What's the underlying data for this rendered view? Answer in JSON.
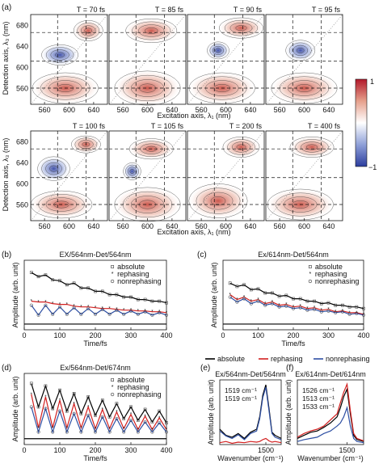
{
  "figure": {
    "panel_letters": [
      "(a)",
      "(b)",
      "(c)",
      "(d)",
      "(e)",
      "(f)"
    ]
  },
  "colorbar": {
    "max_label": "1",
    "min_label": "−1",
    "colors": [
      "#2b3d9e",
      "#8fa0d8",
      "#ffffff",
      "#e6a08c",
      "#b2182b"
    ]
  },
  "twod_maps": {
    "x_ticks": [
      "560",
      "600",
      "640"
    ],
    "y_ticks": [
      "680",
      "640",
      "600",
      "560"
    ],
    "xlabel": "Excitation axis, λ₁ (nm)",
    "ylabel": "Detection axis, λ₃ (nm)",
    "row1_titles": [
      "T = 70 fs",
      "T = 85 fs",
      "T = 90 fs",
      "T = 95 fs"
    ],
    "row2_titles": [
      "T = 100 fs",
      "T = 105 fs",
      "T = 200 fs",
      "T = 400 fs"
    ]
  },
  "legend_efg": {
    "absolute": "absolute",
    "rephasing": "rephasing",
    "nonrephasing": "nonrephasing",
    "colors": {
      "absolute": "#000000",
      "rephasing": "#d21f1f",
      "nonrephasing": "#2e4fa3"
    }
  },
  "chart_data": [
    {
      "id": "b",
      "type": "line",
      "title": "EX/564nm-Det/564nm",
      "xlabel": "Time/fs",
      "ylabel": "Amplitude (arb. unit)",
      "xlim": [
        0,
        400
      ],
      "x_ticks": [
        "0",
        "100",
        "200",
        "300",
        "400"
      ],
      "legend": [
        "absolute",
        "rephasing",
        "nonrephasing"
      ],
      "series": [
        {
          "name": "absolute",
          "x": [
            20,
            40,
            60,
            80,
            100,
            120,
            140,
            160,
            180,
            200,
            220,
            240,
            260,
            280,
            300,
            320,
            340,
            360,
            380,
            400
          ],
          "values": [
            0.85,
            0.8,
            0.82,
            0.76,
            0.75,
            0.7,
            0.72,
            0.66,
            0.66,
            0.62,
            0.62,
            0.58,
            0.58,
            0.55,
            0.55,
            0.52,
            0.52,
            0.5,
            0.5,
            0.48
          ]
        },
        {
          "name": "rephasing",
          "x": [
            20,
            40,
            60,
            80,
            100,
            120,
            140,
            160,
            180,
            200,
            220,
            240,
            260,
            280,
            300,
            320,
            340,
            360,
            380,
            400
          ],
          "values": [
            0.5,
            0.49,
            0.49,
            0.47,
            0.46,
            0.46,
            0.44,
            0.43,
            0.43,
            0.42,
            0.41,
            0.41,
            0.4,
            0.39,
            0.39,
            0.38,
            0.38,
            0.37,
            0.37,
            0.36
          ]
        },
        {
          "name": "nonrephasing",
          "x": [
            20,
            40,
            60,
            80,
            100,
            120,
            140,
            160,
            180,
            200,
            220,
            240,
            260,
            280,
            300,
            320,
            340,
            360,
            380,
            400
          ],
          "values": [
            0.45,
            0.33,
            0.45,
            0.34,
            0.43,
            0.34,
            0.42,
            0.34,
            0.41,
            0.34,
            0.4,
            0.34,
            0.39,
            0.34,
            0.38,
            0.34,
            0.37,
            0.33,
            0.36,
            0.33
          ]
        }
      ]
    },
    {
      "id": "c",
      "type": "line",
      "title": "Ex/614nm-Det/564nm",
      "xlabel": "Time/fs",
      "ylabel": "Amplitude (arb. unit)",
      "xlim": [
        0,
        400
      ],
      "x_ticks": [
        "0",
        "100",
        "200",
        "300",
        "400"
      ],
      "legend": [
        "absolute",
        "rephasing",
        "nonrephasing"
      ],
      "series": [
        {
          "name": "absolute",
          "x": [
            20,
            40,
            60,
            80,
            100,
            120,
            140,
            160,
            180,
            200,
            220,
            240,
            260,
            280,
            300,
            320,
            340,
            360,
            380,
            400
          ],
          "values": [
            0.72,
            0.68,
            0.7,
            0.64,
            0.65,
            0.6,
            0.6,
            0.56,
            0.57,
            0.53,
            0.53,
            0.5,
            0.5,
            0.47,
            0.48,
            0.45,
            0.45,
            0.43,
            0.43,
            0.41
          ]
        },
        {
          "name": "rephasing",
          "x": [
            20,
            40,
            60,
            80,
            100,
            120,
            140,
            160,
            180,
            200,
            220,
            240,
            260,
            280,
            300,
            320,
            340,
            360,
            380,
            400
          ],
          "values": [
            0.58,
            0.52,
            0.55,
            0.5,
            0.52,
            0.47,
            0.49,
            0.45,
            0.46,
            0.43,
            0.44,
            0.41,
            0.42,
            0.39,
            0.4,
            0.37,
            0.38,
            0.36,
            0.36,
            0.34
          ]
        },
        {
          "name": "nonrephasing",
          "x": [
            20,
            40,
            60,
            80,
            100,
            120,
            140,
            160,
            180,
            200,
            220,
            240,
            260,
            280,
            300,
            320,
            340,
            360,
            380,
            400
          ],
          "values": [
            0.55,
            0.49,
            0.53,
            0.47,
            0.5,
            0.45,
            0.47,
            0.43,
            0.44,
            0.41,
            0.42,
            0.39,
            0.4,
            0.37,
            0.38,
            0.36,
            0.37,
            0.34,
            0.35,
            0.33
          ]
        }
      ]
    },
    {
      "id": "d",
      "type": "line",
      "title": "Ex/564nm-Det/674nm",
      "xlabel": "Time/fs",
      "ylabel": "Amplitude (arb. unit)",
      "xlim": [
        0,
        400
      ],
      "x_ticks": [
        "0",
        "100",
        "200",
        "300",
        "400"
      ],
      "legend": [
        "absolute",
        "rephasing",
        "nonrephasing"
      ],
      "series": [
        {
          "name": "absolute",
          "x": [
            20,
            40,
            60,
            80,
            100,
            120,
            140,
            160,
            180,
            200,
            220,
            240,
            260,
            280,
            300,
            320,
            340,
            360,
            380,
            400
          ],
          "values": [
            0.88,
            0.6,
            0.85,
            0.58,
            0.8,
            0.55,
            0.76,
            0.52,
            0.72,
            0.5,
            0.68,
            0.48,
            0.64,
            0.46,
            0.6,
            0.44,
            0.57,
            0.42,
            0.55,
            0.41
          ]
        },
        {
          "name": "rephasing",
          "x": [
            20,
            40,
            60,
            80,
            100,
            120,
            140,
            160,
            180,
            200,
            220,
            240,
            260,
            280,
            300,
            320,
            340,
            360,
            380,
            400
          ],
          "values": [
            0.75,
            0.35,
            0.72,
            0.35,
            0.68,
            0.35,
            0.64,
            0.35,
            0.6,
            0.34,
            0.57,
            0.34,
            0.54,
            0.34,
            0.51,
            0.33,
            0.49,
            0.33,
            0.47,
            0.33
          ]
        },
        {
          "name": "nonrephasing",
          "x": [
            20,
            40,
            60,
            80,
            100,
            120,
            140,
            160,
            180,
            200,
            220,
            240,
            260,
            280,
            300,
            320,
            340,
            360,
            380,
            400
          ],
          "values": [
            0.6,
            0.3,
            0.58,
            0.3,
            0.55,
            0.3,
            0.52,
            0.3,
            0.5,
            0.3,
            0.48,
            0.3,
            0.46,
            0.3,
            0.44,
            0.3,
            0.42,
            0.3,
            0.41,
            0.3
          ]
        }
      ]
    },
    {
      "id": "e",
      "type": "line",
      "title": "Ex/564nm-Det/564nm",
      "xlabel": "Wavenumber (cm⁻¹)",
      "ylabel": "Amplitude (arb. unit)",
      "xlim": [
        0,
        2000
      ],
      "x_ticks": [
        "1500"
      ],
      "annotations": [
        {
          "text": "1519 cm⁻¹",
          "color": "#2e4fa3"
        },
        {
          "text": "1519 cm⁻¹",
          "color": "#000000"
        }
      ],
      "series": [
        {
          "name": "absolute",
          "x": [
            0,
            200,
            400,
            600,
            800,
            1000,
            1200,
            1300,
            1400,
            1500,
            1600,
            1700,
            1800,
            2000
          ],
          "values": [
            0.25,
            0.15,
            0.12,
            0.18,
            0.1,
            0.2,
            0.25,
            0.45,
            0.8,
            0.97,
            0.6,
            0.2,
            0.15,
            0.1
          ]
        },
        {
          "name": "rephasing",
          "x": [
            0,
            200,
            400,
            600,
            800,
            1000,
            1200,
            1300,
            1400,
            1500,
            1600,
            1700,
            1800,
            2000
          ],
          "values": [
            0.03,
            0.05,
            0.02,
            0.04,
            0.03,
            0.05,
            0.04,
            0.05,
            0.08,
            0.1,
            0.06,
            0.04,
            0.05,
            0.03
          ]
        },
        {
          "name": "nonrephasing",
          "x": [
            0,
            200,
            400,
            600,
            800,
            1000,
            1200,
            1300,
            1400,
            1500,
            1600,
            1700,
            1800,
            2000
          ],
          "values": [
            0.22,
            0.14,
            0.1,
            0.16,
            0.08,
            0.18,
            0.22,
            0.42,
            0.76,
            0.93,
            0.56,
            0.18,
            0.12,
            0.08
          ]
        }
      ]
    },
    {
      "id": "f",
      "type": "line",
      "title": "Ex/614nm-Det/614nm",
      "xlabel": "Wavenumber (cm⁻¹)",
      "ylabel": "Amplitude (arb. unit)",
      "xlim": [
        0,
        2000
      ],
      "x_ticks": [
        "1500"
      ],
      "annotations": [
        {
          "text": "1526 cm⁻¹",
          "color": "#d21f1f"
        },
        {
          "text": "1513 cm⁻¹",
          "color": "#000000"
        },
        {
          "text": "1533 cm⁻¹",
          "color": "#2e4fa3"
        }
      ],
      "series": [
        {
          "name": "absolute",
          "x": [
            0,
            200,
            400,
            600,
            800,
            1000,
            1200,
            1300,
            1400,
            1500,
            1600,
            1700,
            1800,
            2000
          ],
          "values": [
            0.1,
            0.15,
            0.2,
            0.22,
            0.28,
            0.35,
            0.45,
            0.6,
            0.78,
            0.9,
            0.5,
            0.15,
            0.08,
            0.05
          ]
        },
        {
          "name": "rephasing",
          "x": [
            0,
            200,
            400,
            600,
            800,
            1000,
            1200,
            1300,
            1400,
            1500,
            1600,
            1700,
            1800,
            2000
          ],
          "values": [
            0.12,
            0.18,
            0.22,
            0.25,
            0.3,
            0.4,
            0.5,
            0.68,
            0.85,
            0.98,
            0.55,
            0.18,
            0.1,
            0.06
          ]
        },
        {
          "name": "nonrephasing",
          "x": [
            0,
            200,
            400,
            600,
            800,
            1000,
            1200,
            1300,
            1400,
            1500,
            1600,
            1700,
            1800,
            2000
          ],
          "values": [
            0.05,
            0.08,
            0.1,
            0.12,
            0.18,
            0.22,
            0.3,
            0.35,
            0.45,
            0.6,
            0.3,
            0.1,
            0.05,
            0.03
          ]
        }
      ]
    }
  ]
}
